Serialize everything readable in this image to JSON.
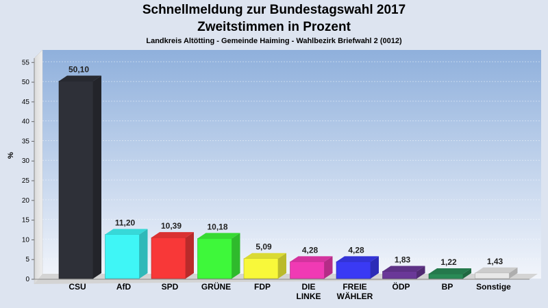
{
  "header": {
    "title": "Schnellmeldung zur Bundestagswahl 2017",
    "subtitle": "Zweitstimmen in Prozent",
    "location": "Landkreis Altötting - Gemeinde Haiming - Wahlbezirk Briefwahl 2 (0012)"
  },
  "chart_data": {
    "type": "bar",
    "title": "Schnellmeldung zur Bundestagswahl 2017",
    "subtitle": "Zweitstimmen in Prozent",
    "xlabel": "",
    "ylabel": "%",
    "ylim": [
      0,
      58
    ],
    "yticks": [
      "0",
      "5",
      "10",
      "15",
      "20",
      "25",
      "30",
      "35",
      "40",
      "45",
      "50",
      "55"
    ],
    "grid": true,
    "categories": [
      "CSU",
      "AfD",
      "SPD",
      "GRÜNE",
      "FDP",
      "DIE LINKE",
      "FREIE WÄHLER",
      "ÖDP",
      "BP",
      "Sonstige"
    ],
    "values": [
      50.1,
      11.2,
      10.39,
      10.18,
      5.09,
      4.28,
      4.28,
      1.83,
      1.22,
      1.43
    ],
    "value_labels": [
      "50,10",
      "11,20",
      "10,39",
      "10,18",
      "5,09",
      "4,28",
      "4,28",
      "1,83",
      "1,22",
      "1,43"
    ],
    "colors": [
      "#2e3038",
      "#3ff6f6",
      "#f83838",
      "#3ef83a",
      "#f8f83a",
      "#f03ab4",
      "#3a3af4",
      "#6a3898",
      "#2a8a56",
      "#e8e8e8"
    ]
  }
}
